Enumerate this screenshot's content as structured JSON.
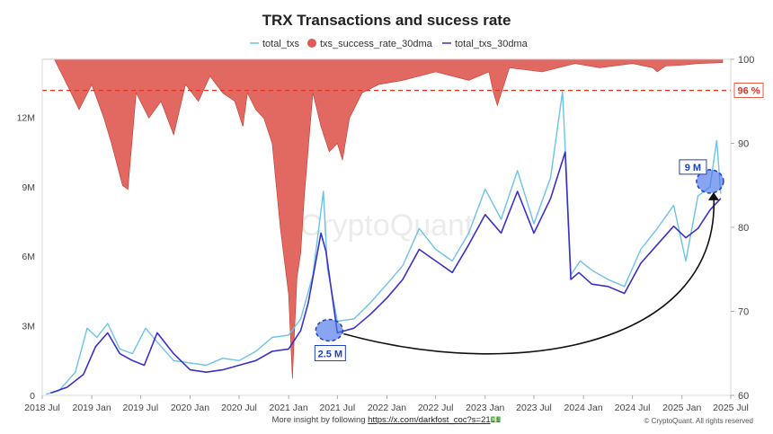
{
  "chart_data": {
    "type": "line",
    "title": "TRX Transactions and sucess rate",
    "legend": {
      "placement": "top-center",
      "items": [
        {
          "label": "total_txs",
          "color": "#6bc3e6",
          "marker": "line"
        },
        {
          "label": "txs_success_rate_30dma",
          "color": "#e05b55",
          "marker": "dot"
        },
        {
          "label": "total_txs_30dma",
          "color": "#3b2fc9",
          "marker": "line"
        }
      ]
    },
    "x_axis": {
      "ticks": [
        "2018 Jul",
        "2019 Jan",
        "2019 Jul",
        "2020 Jan",
        "2020 Jul",
        "2021 Jan",
        "2021 Jul",
        "2022 Jan",
        "2022 Jul",
        "2023 Jan",
        "2023 Jul",
        "2024 Jan",
        "2024 Jul",
        "2025 Jan",
        "2025 Jul"
      ],
      "range": [
        "2018-07-01",
        "2025-07-01"
      ]
    },
    "y_left": {
      "ticks": [
        "0",
        "3M",
        "6M",
        "9M",
        "12M"
      ],
      "values": [
        0,
        3000000,
        6000000,
        9000000,
        12000000
      ],
      "ylim": [
        0,
        14500000
      ]
    },
    "y_right": {
      "ticks": [
        "60",
        "70",
        "80",
        "90",
        "100"
      ],
      "values": [
        60,
        70,
        80,
        90,
        100
      ],
      "ylim": [
        60,
        100
      ]
    },
    "grid": false,
    "reference_line": {
      "axis": "right",
      "value": 96.3,
      "label": "96 %",
      "color": "#e0321f"
    },
    "series": [
      {
        "name": "total_txs_30dma",
        "axis": "left",
        "color": "#3b2fc9",
        "x": [
          "2018-08-01",
          "2018-10-01",
          "2018-12-01",
          "2019-01-15",
          "2019-03-01",
          "2019-04-15",
          "2019-06-01",
          "2019-07-15",
          "2019-09-01",
          "2019-11-01",
          "2020-01-01",
          "2020-03-01",
          "2020-05-01",
          "2020-07-01",
          "2020-09-01",
          "2020-11-01",
          "2021-01-01",
          "2021-02-15",
          "2021-03-15",
          "2021-05-01",
          "2021-05-20",
          "2021-07-01",
          "2021-09-01",
          "2021-11-01",
          "2022-01-01",
          "2022-03-01",
          "2022-05-01",
          "2022-07-01",
          "2022-09-01",
          "2022-11-01",
          "2023-01-01",
          "2023-03-01",
          "2023-05-01",
          "2023-07-01",
          "2023-09-01",
          "2023-10-25",
          "2023-11-15",
          "2023-12-15",
          "2024-02-01",
          "2024-04-01",
          "2024-06-01",
          "2024-08-01",
          "2024-10-01",
          "2024-12-01",
          "2025-01-15",
          "2025-03-01",
          "2025-04-15",
          "2025-05-25"
        ],
        "y": [
          100000,
          350000,
          900000,
          2100000,
          2700000,
          1800000,
          1500000,
          1300000,
          2700000,
          1800000,
          1100000,
          1000000,
          1100000,
          1300000,
          1500000,
          1900000,
          2000000,
          2800000,
          4000000,
          7000000,
          6200000,
          2700000,
          2900000,
          3500000,
          4200000,
          5000000,
          6300000,
          5800000,
          5300000,
          6500000,
          7800000,
          7000000,
          8800000,
          7000000,
          8500000,
          10500000,
          5000000,
          5300000,
          4800000,
          4700000,
          4400000,
          5700000,
          6500000,
          7300000,
          6800000,
          7200000,
          8000000,
          8500000
        ]
      },
      {
        "name": "total_txs",
        "axis": "left",
        "color": "#6bc3e6",
        "x": [
          "2018-07-15",
          "2018-09-01",
          "2018-11-01",
          "2018-12-15",
          "2019-01-20",
          "2019-03-01",
          "2019-04-15",
          "2019-06-01",
          "2019-07-20",
          "2019-09-01",
          "2019-11-01",
          "2020-01-01",
          "2020-03-01",
          "2020-05-01",
          "2020-07-01",
          "2020-09-01",
          "2020-11-01",
          "2021-01-01",
          "2021-02-15",
          "2021-04-01",
          "2021-05-10",
          "2021-05-25",
          "2021-07-01",
          "2021-09-01",
          "2021-11-01",
          "2022-01-01",
          "2022-03-01",
          "2022-05-01",
          "2022-07-01",
          "2022-09-01",
          "2022-11-01",
          "2023-01-01",
          "2023-03-01",
          "2023-05-01",
          "2023-07-01",
          "2023-09-01",
          "2023-10-15",
          "2023-10-28",
          "2023-11-15",
          "2023-12-20",
          "2024-02-01",
          "2024-04-01",
          "2024-06-01",
          "2024-08-01",
          "2024-10-01",
          "2024-12-01",
          "2025-01-15",
          "2025-03-01",
          "2025-04-15",
          "2025-05-10",
          "2025-05-25"
        ],
        "y": [
          50000,
          200000,
          1000000,
          2900000,
          2500000,
          3100000,
          2000000,
          1800000,
          2900000,
          2300000,
          1500000,
          1400000,
          1300000,
          1600000,
          1500000,
          1900000,
          2500000,
          2600000,
          3300000,
          5200000,
          8800000,
          5500000,
          3200000,
          3300000,
          4000000,
          4800000,
          5600000,
          7200000,
          6300000,
          5800000,
          7000000,
          8900000,
          7600000,
          9700000,
          7400000,
          9400000,
          13100000,
          10000000,
          5200000,
          5800000,
          5400000,
          5000000,
          4700000,
          6300000,
          7200000,
          8200000,
          5800000,
          8600000,
          9000000,
          11000000,
          8700000
        ]
      },
      {
        "name": "txs_success_rate_30dma",
        "axis": "right",
        "color": "#e05b55",
        "x": [
          "2018-07-01",
          "2018-08-15",
          "2018-10-01",
          "2018-11-15",
          "2019-01-01",
          "2019-02-15",
          "2019-03-15",
          "2019-04-25",
          "2019-05-15",
          "2019-06-15",
          "2019-08-01",
          "2019-09-15",
          "2019-11-01",
          "2019-12-15",
          "2020-02-01",
          "2020-03-15",
          "2020-05-01",
          "2020-06-15",
          "2020-07-15",
          "2020-08-01",
          "2020-09-01",
          "2020-10-01",
          "2020-11-01",
          "2020-12-01",
          "2021-01-01",
          "2021-01-15",
          "2021-02-01",
          "2021-02-15",
          "2021-03-01",
          "2021-04-01",
          "2021-05-01",
          "2021-06-01",
          "2021-07-01",
          "2021-07-20",
          "2021-08-15",
          "2021-10-01",
          "2021-12-01",
          "2022-03-01",
          "2022-07-01",
          "2022-11-01",
          "2023-01-15",
          "2023-02-01",
          "2023-02-15",
          "2023-04-01",
          "2023-08-01",
          "2023-12-01",
          "2024-03-01",
          "2024-07-01",
          "2024-09-15",
          "2024-10-01",
          "2024-11-01",
          "2025-01-01",
          "2025-03-01",
          "2025-06-01"
        ],
        "y": [
          100,
          100,
          97,
          94,
          97,
          93,
          90,
          85,
          84.5,
          96,
          93,
          95,
          91,
          97,
          95,
          98,
          96,
          95,
          92,
          96,
          94,
          93,
          90,
          80,
          72,
          62,
          74,
          77,
          84,
          96,
          92,
          89,
          90,
          88,
          93,
          96,
          97,
          97.5,
          98.5,
          97.5,
          98.5,
          96,
          94.5,
          99,
          98.5,
          99.5,
          99,
          99.5,
          99,
          98.5,
          99.2,
          99.3,
          99.5,
          99.6
        ]
      }
    ],
    "annotations": [
      {
        "label": "2.5 M",
        "x": "2021-06-01",
        "y": 2500000
      },
      {
        "label": "9 M",
        "x": "2025-04-15",
        "y": 9000000
      }
    ]
  },
  "watermark": "CryptoQuant",
  "footer": {
    "text": "More insight by following ",
    "link": "https://x.com/darkfost_coc?s=21",
    "emoji": "💵",
    "copyright": "© CryptoQuant. All rights reserved"
  }
}
